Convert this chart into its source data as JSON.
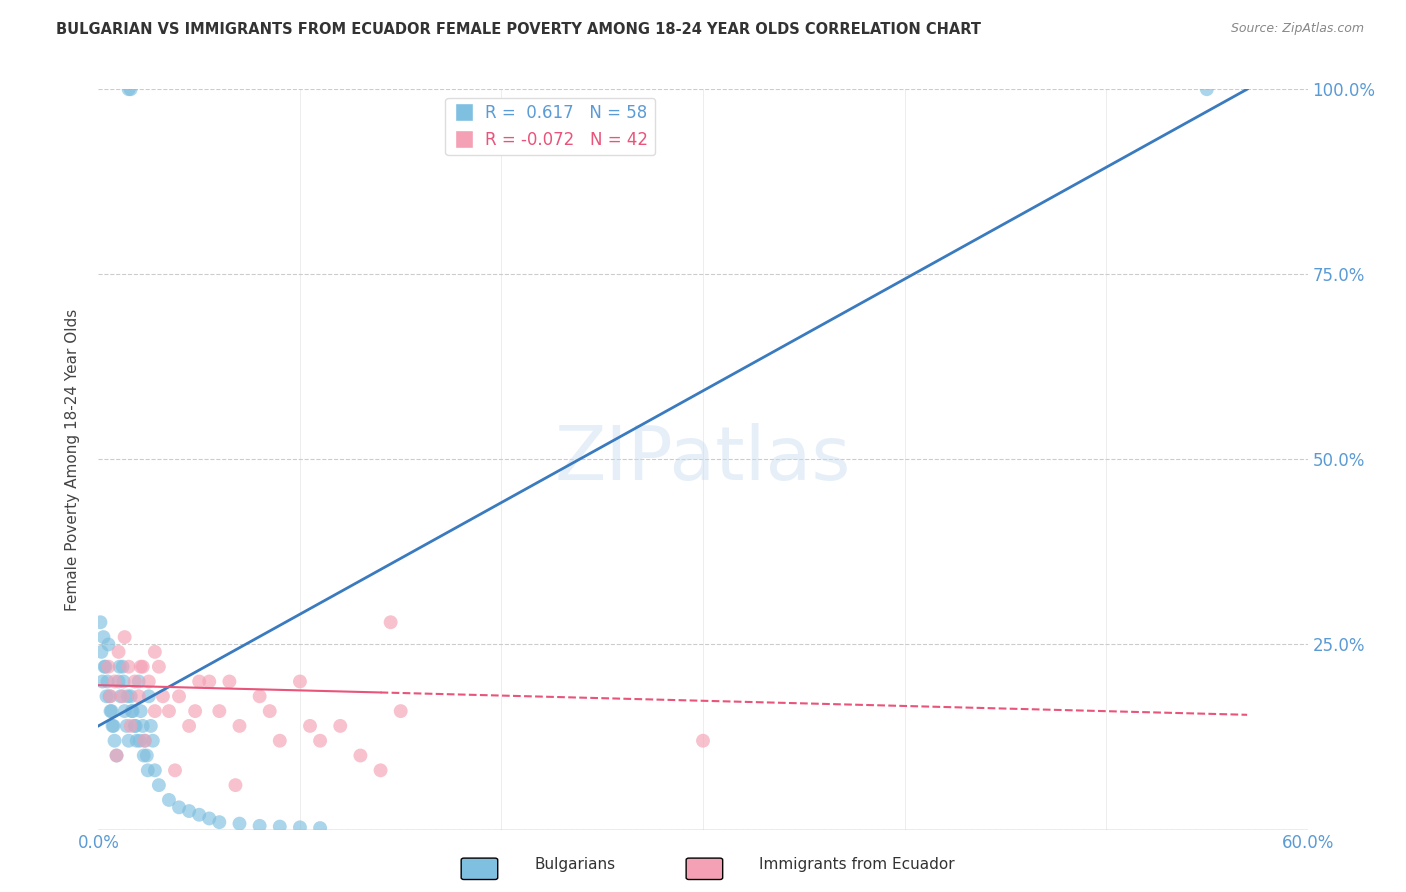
{
  "title": "BULGARIAN VS IMMIGRANTS FROM ECUADOR FEMALE POVERTY AMONG 18-24 YEAR OLDS CORRELATION CHART",
  "source": "Source: ZipAtlas.com",
  "ylabel": "Female Poverty Among 18-24 Year Olds",
  "blue_R": 0.617,
  "blue_N": 58,
  "pink_R": -0.072,
  "pink_N": 42,
  "blue_label": "Bulgarians",
  "pink_label": "Immigrants from Ecuador",
  "blue_color": "#7fbfdf",
  "pink_color": "#f4a0b5",
  "blue_line_color": "#3a7abf",
  "pink_line_color": "#e8547a",
  "bg_color": "#ffffff",
  "blue_scatter_x": [
    0.2,
    0.3,
    0.4,
    0.5,
    0.6,
    0.7,
    0.8,
    0.9,
    1.0,
    1.1,
    1.2,
    1.3,
    1.4,
    1.5,
    1.6,
    1.7,
    1.8,
    1.9,
    2.0,
    2.1,
    2.2,
    2.3,
    2.4,
    2.5,
    2.6,
    2.7,
    2.8,
    3.0,
    3.5,
    4.0,
    4.5,
    5.0,
    5.5,
    6.0,
    7.0,
    8.0,
    9.0,
    10.0,
    11.0,
    0.1,
    0.15,
    0.25,
    0.35,
    0.45,
    0.55,
    0.65,
    0.75,
    1.05,
    1.25,
    1.45,
    1.65,
    1.85,
    2.05,
    2.25,
    2.45,
    55.0,
    1.5,
    1.6
  ],
  "blue_scatter_y": [
    20.0,
    22.0,
    18.0,
    25.0,
    16.0,
    14.0,
    12.0,
    10.0,
    20.0,
    18.0,
    22.0,
    16.0,
    14.0,
    12.0,
    18.0,
    16.0,
    14.0,
    12.0,
    20.0,
    16.0,
    14.0,
    12.0,
    10.0,
    18.0,
    14.0,
    12.0,
    8.0,
    6.0,
    4.0,
    3.0,
    2.5,
    2.0,
    1.5,
    1.0,
    0.8,
    0.5,
    0.4,
    0.3,
    0.2,
    28.0,
    24.0,
    26.0,
    22.0,
    20.0,
    18.0,
    16.0,
    14.0,
    22.0,
    20.0,
    18.0,
    16.0,
    14.0,
    12.0,
    10.0,
    8.0,
    100.0,
    100.0,
    100.0
  ],
  "pink_scatter_x": [
    0.5,
    0.8,
    1.0,
    1.2,
    1.5,
    1.8,
    2.0,
    2.2,
    2.5,
    2.8,
    3.0,
    3.5,
    4.0,
    4.5,
    5.0,
    6.0,
    7.0,
    8.0,
    9.0,
    10.0,
    11.0,
    12.0,
    13.0,
    14.0,
    15.0,
    1.3,
    2.1,
    3.2,
    4.8,
    6.5,
    8.5,
    10.5,
    0.6,
    1.6,
    2.8,
    5.5,
    30.0,
    14.5,
    0.9,
    3.8,
    2.3,
    6.8
  ],
  "pink_scatter_y": [
    22.0,
    20.0,
    24.0,
    18.0,
    22.0,
    20.0,
    18.0,
    22.0,
    20.0,
    16.0,
    22.0,
    16.0,
    18.0,
    14.0,
    20.0,
    16.0,
    14.0,
    18.0,
    12.0,
    20.0,
    12.0,
    14.0,
    10.0,
    8.0,
    16.0,
    26.0,
    22.0,
    18.0,
    16.0,
    20.0,
    16.0,
    14.0,
    18.0,
    14.0,
    24.0,
    20.0,
    12.0,
    28.0,
    10.0,
    8.0,
    12.0,
    6.0
  ],
  "blue_line_x0": 0.0,
  "blue_line_y0": 14.0,
  "blue_line_x1": 57.0,
  "blue_line_y1": 100.0,
  "pink_line_x0": 0.0,
  "pink_line_y0": 19.5,
  "pink_line_x1": 57.0,
  "pink_line_y1": 15.5,
  "pink_solid_end_x": 14.0,
  "xlim": [
    0.0,
    60.0
  ],
  "ylim": [
    0.0,
    100.0
  ],
  "xtick_vals": [
    0,
    10,
    20,
    30,
    40,
    50,
    60
  ],
  "ytick_vals": [
    0,
    25,
    50,
    75,
    100
  ],
  "right_ytick_labels": [
    "",
    "25.0%",
    "50.0%",
    "75.0%",
    "100.0%"
  ],
  "marker_size": 100
}
